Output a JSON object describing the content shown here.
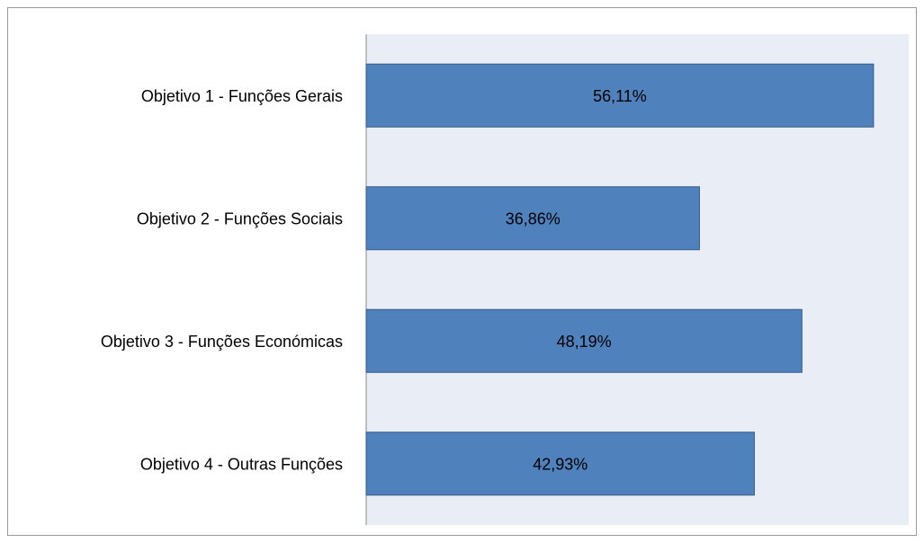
{
  "chart_data": {
    "type": "hbar",
    "categories": [
      "Objetivo 1 - Funções Gerais",
      "Objetivo 2 - Funções Sociais",
      "Objetivo 3 - Funções Económicas",
      "Objetivo 4 - Outras Funções"
    ],
    "values": [
      56.11,
      36.86,
      48.19,
      42.93
    ],
    "value_labels": [
      "56,11%",
      "36,86%",
      "48,19%",
      "42,93%"
    ],
    "color": "#4f81bd",
    "xlim": [
      0,
      60
    ]
  }
}
